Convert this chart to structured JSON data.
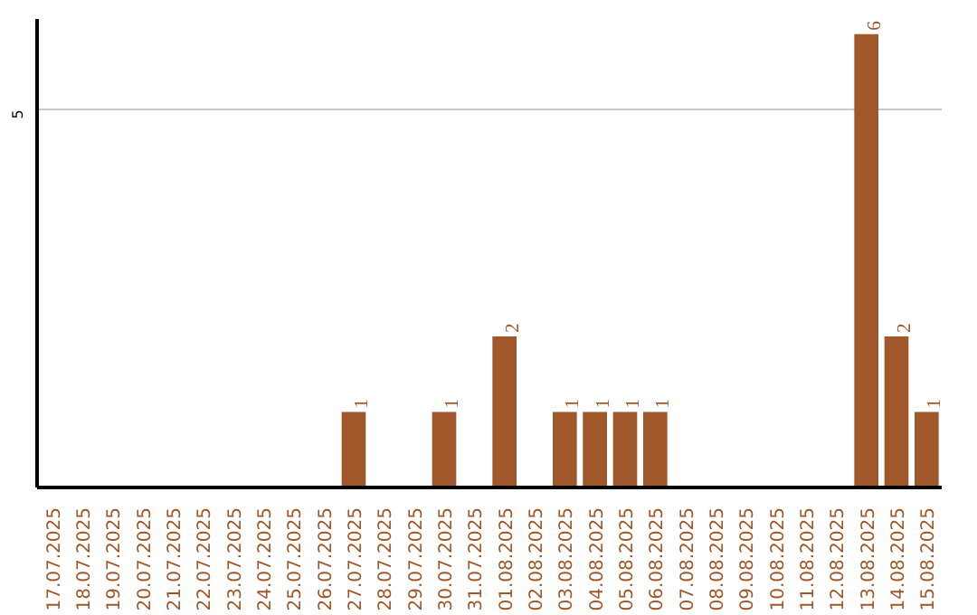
{
  "chart_data": {
    "type": "bar",
    "categories": [
      "17.07.2025",
      "18.07.2025",
      "19.07.2025",
      "20.07.2025",
      "21.07.2025",
      "22.07.2025",
      "23.07.2025",
      "24.07.2025",
      "25.07.2025",
      "26.07.2025",
      "27.07.2025",
      "28.07.2025",
      "29.07.2025",
      "30.07.2025",
      "31.07.2025",
      "01.08.2025",
      "02.08.2025",
      "03.08.2025",
      "04.08.2025",
      "05.08.2025",
      "06.08.2025",
      "07.08.2025",
      "08.08.2025",
      "09.08.2025",
      "10.08.2025",
      "11.08.2025",
      "12.08.2025",
      "13.08.2025",
      "14.08.2025",
      "15.08.2025"
    ],
    "values": [
      0,
      0,
      0,
      0,
      0,
      0,
      0,
      0,
      0,
      0,
      1,
      0,
      0,
      1,
      0,
      2,
      0,
      1,
      1,
      1,
      1,
      0,
      0,
      0,
      0,
      0,
      0,
      6,
      2,
      1
    ],
    "value_labels": [
      null,
      null,
      null,
      null,
      null,
      null,
      null,
      null,
      null,
      null,
      "1",
      null,
      null,
      "1",
      null,
      "2",
      null,
      "1",
      "1",
      "1",
      "1",
      null,
      null,
      null,
      null,
      null,
      null,
      "6",
      "2",
      "1"
    ],
    "color": "#a0582a",
    "ylim": [
      0,
      6.2
    ],
    "yticks": [
      5
    ],
    "grid": "y"
  }
}
